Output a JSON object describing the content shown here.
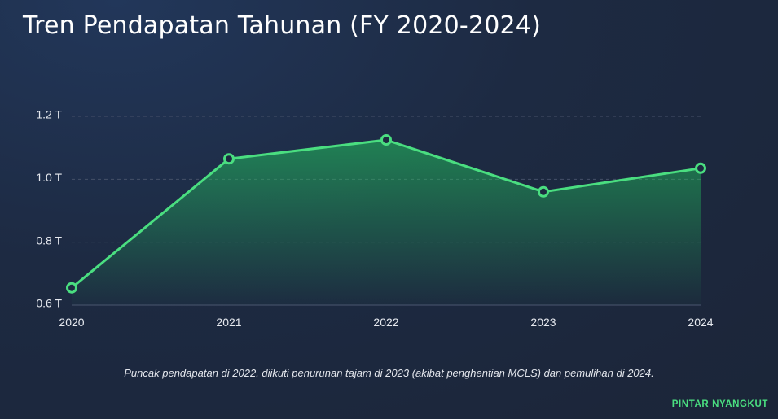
{
  "header": {
    "title": "Tren Pendapatan Tahunan (FY 2020-2024)"
  },
  "chart_data": {
    "type": "area",
    "x": [
      "2020",
      "2021",
      "2022",
      "2023",
      "2024"
    ],
    "series": [
      {
        "values": [
          0.655,
          1.065,
          1.125,
          0.96,
          1.035
        ]
      }
    ],
    "y_ticks": [
      0.6,
      0.8,
      1.0,
      1.2
    ],
    "y_tick_labels": [
      "0.6 T",
      "0.8 T",
      "1.0 T",
      "1.2 T"
    ],
    "ylim": [
      0.6,
      1.2
    ],
    "grid": true,
    "line_color": "#4ade80",
    "fill_color": "#22c55e"
  },
  "footer": {
    "caption": "Puncak pendapatan di 2022, diikuti penurunan tajam di 2023 (akibat penghentian MCLS) dan pemulihan di 2024.",
    "brand": "PINTAR NYANGKUT"
  }
}
